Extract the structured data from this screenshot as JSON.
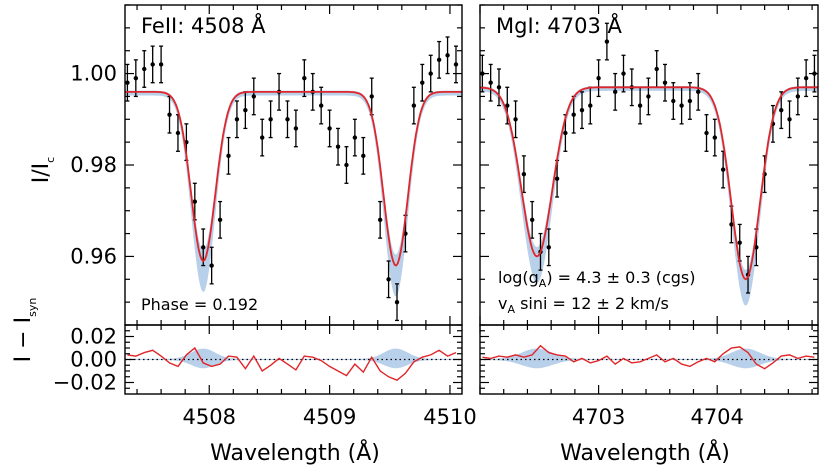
{
  "figure": {
    "ylabel_main": "I/I",
    "ylabel_main_sub": "c",
    "ylabel_resid": "I − I",
    "ylabel_resid_sub": "syn",
    "xlabel": "Wavelength (Å)"
  },
  "colors": {
    "model": "#e0262a",
    "band": "#b8d0ea",
    "data": "#000000",
    "zero_line": "#000000"
  },
  "chart_data": [
    {
      "type": "line",
      "title": "FeII: 4508 Å",
      "annotation": "Phase = 0.192",
      "xlim": [
        4507.3,
        4510.1
      ],
      "ylim": [
        0.945,
        1.015
      ],
      "resid_ylim": [
        -0.03,
        0.03
      ],
      "xticks": [
        4508,
        4509,
        4510
      ],
      "xtick_labels": [
        "4508",
        "4509",
        "4510"
      ],
      "yticks": [
        0.96,
        0.98,
        1.0
      ],
      "ytick_labels": [
        "0.96",
        "0.98",
        "1.00"
      ],
      "resid_yticks": [
        -0.02,
        0.0,
        0.02
      ],
      "resid_ytick_labels": [
        "−0.02",
        "0.00",
        "0.02"
      ],
      "lines": [
        {
          "center": 4507.95,
          "depth": 0.037,
          "sigma": 0.1
        },
        {
          "center": 4509.55,
          "depth": 0.038,
          "sigma": 0.1
        }
      ],
      "continuum": 0.996,
      "band_width": 0.006,
      "observed": {
        "x": [
          4507.32,
          4507.39,
          4507.46,
          4507.53,
          4507.6,
          4507.67,
          4507.74,
          4507.81,
          4507.88,
          4507.95,
          4508.02,
          4508.09,
          4508.16,
          4508.23,
          4508.3,
          4508.37,
          4508.44,
          4508.51,
          4508.58,
          4508.65,
          4508.72,
          4508.79,
          4508.86,
          4508.93,
          4509.0,
          4509.07,
          4509.14,
          4509.21,
          4509.28,
          4509.35,
          4509.42,
          4509.49,
          4509.56,
          4509.63,
          4509.7,
          4509.77,
          4509.84,
          4509.91,
          4509.98,
          4510.05
        ],
        "y": [
          0.998,
          0.999,
          1.001,
          1.002,
          1.002,
          0.991,
          0.987,
          0.985,
          0.972,
          0.962,
          0.958,
          0.968,
          0.982,
          0.99,
          0.992,
          0.995,
          0.986,
          0.99,
          0.996,
          0.99,
          0.988,
          0.999,
          0.996,
          0.993,
          0.988,
          0.984,
          0.98,
          0.986,
          0.982,
          0.995,
          0.968,
          0.955,
          0.95,
          0.965,
          0.993,
          0.998,
          1.0,
          1.003,
          1.004,
          1.002
        ],
        "err": 0.004
      },
      "residual": {
        "x": [
          4507.32,
          4507.39,
          4507.46,
          4507.53,
          4507.6,
          4507.67,
          4507.74,
          4507.81,
          4507.88,
          4507.95,
          4508.02,
          4508.09,
          4508.16,
          4508.23,
          4508.3,
          4508.37,
          4508.44,
          4508.51,
          4508.58,
          4508.65,
          4508.72,
          4508.79,
          4508.86,
          4508.93,
          4509.0,
          4509.07,
          4509.14,
          4509.21,
          4509.28,
          4509.35,
          4509.42,
          4509.49,
          4509.56,
          4509.63,
          4509.7,
          4509.77,
          4509.84,
          4509.91,
          4509.98,
          4510.05
        ],
        "y": [
          0.004,
          0.003,
          0.006,
          0.008,
          0.003,
          -0.003,
          -0.006,
          0.004,
          0.01,
          -0.003,
          -0.006,
          -0.004,
          0.003,
          0.002,
          -0.008,
          0.003,
          -0.01,
          -0.005,
          0.001,
          -0.004,
          -0.009,
          0.003,
          0.002,
          -0.001,
          -0.006,
          -0.01,
          -0.014,
          -0.004,
          -0.011,
          0.002,
          -0.01,
          -0.015,
          -0.018,
          -0.012,
          -0.002,
          0.002,
          0.004,
          0.008,
          0.003,
          0.006
        ]
      }
    },
    {
      "type": "line",
      "title": "MgI: 4703 Å",
      "annotation_lines": [
        "log(g_A) = 4.3 ± 0.3 (cgs)",
        "v_A sini = 12 ± 2 km/s"
      ],
      "xlim": [
        4702.0,
        4704.85
      ],
      "ylim": [
        0.945,
        1.015
      ],
      "resid_ylim": [
        -0.03,
        0.03
      ],
      "xticks": [
        4703,
        4704
      ],
      "xtick_labels": [
        "4703",
        "4704"
      ],
      "yticks": [
        0.96,
        0.98,
        1.0
      ],
      "resid_yticks": [
        -0.02,
        0.0,
        0.02
      ],
      "lines": [
        {
          "center": 4702.48,
          "depth": 0.037,
          "sigma": 0.13
        },
        {
          "center": 4704.24,
          "depth": 0.042,
          "sigma": 0.12
        }
      ],
      "continuum": 0.997,
      "band_width": 0.005,
      "observed": {
        "x": [
          4702.02,
          4702.09,
          4702.16,
          4702.23,
          4702.3,
          4702.37,
          4702.44,
          4702.51,
          4702.58,
          4702.65,
          4702.72,
          4702.79,
          4702.86,
          4702.93,
          4703.0,
          4703.07,
          4703.14,
          4703.21,
          4703.28,
          4703.35,
          4703.42,
          4703.49,
          4703.56,
          4703.63,
          4703.7,
          4703.77,
          4703.84,
          4703.91,
          4703.98,
          4704.05,
          4704.12,
          4704.19,
          4704.26,
          4704.33,
          4704.4,
          4704.47,
          4704.54,
          4704.61,
          4704.68,
          4704.75,
          4704.82
        ],
        "y": [
          1.0,
          0.998,
          0.997,
          0.993,
          0.99,
          0.978,
          0.968,
          0.961,
          0.962,
          0.977,
          0.987,
          0.991,
          0.992,
          0.993,
          0.999,
          1.007,
          0.996,
          1.0,
          0.997,
          0.993,
          0.995,
          1.001,
          0.998,
          0.994,
          0.993,
          0.994,
          0.996,
          0.987,
          0.986,
          0.979,
          0.967,
          0.963,
          0.956,
          0.962,
          0.978,
          0.989,
          0.992,
          0.99,
          0.995,
          0.999,
          1.0
        ],
        "err": 0.004
      },
      "residual": {
        "x": [
          4702.02,
          4702.09,
          4702.16,
          4702.23,
          4702.3,
          4702.37,
          4702.44,
          4702.51,
          4702.58,
          4702.65,
          4702.72,
          4702.79,
          4702.86,
          4702.93,
          4703.0,
          4703.07,
          4703.14,
          4703.21,
          4703.28,
          4703.35,
          4703.42,
          4703.49,
          4703.56,
          4703.63,
          4703.7,
          4703.77,
          4703.84,
          4703.91,
          4703.98,
          4704.05,
          4704.12,
          4704.19,
          4704.26,
          4704.33,
          4704.4,
          4704.47,
          4704.54,
          4704.61,
          4704.68,
          4704.75,
          4704.82
        ],
        "y": [
          0.002,
          0.001,
          0.003,
          0.002,
          0.004,
          0.002,
          0.004,
          0.012,
          0.006,
          0.004,
          0.003,
          -0.002,
          0.001,
          -0.003,
          -0.001,
          0.003,
          -0.004,
          0.001,
          -0.003,
          -0.002,
          0.001,
          0.004,
          -0.002,
          0.001,
          -0.004,
          -0.006,
          -0.002,
          0.001,
          -0.002,
          0.005,
          0.01,
          0.011,
          0.006,
          -0.004,
          -0.008,
          -0.003,
          0.003,
          0.004,
          0.001,
          0.003,
          0.002
        ]
      }
    }
  ]
}
